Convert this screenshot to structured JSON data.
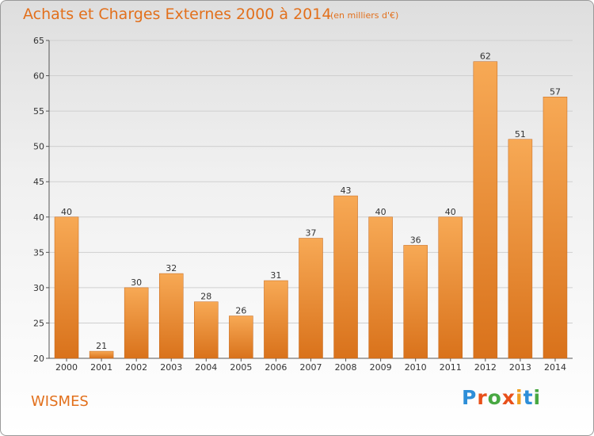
{
  "header": {
    "title": "Achats et Charges Externes 2000 à 2014",
    "subtitle": "(en milliers d'€)"
  },
  "footer": {
    "commune": "WISMES",
    "logo_text": "Proxiti"
  },
  "colors": {
    "accent": "#e2701c",
    "bar_top": "#f7a955",
    "bar_bottom": "#d9721b"
  },
  "chart_data": {
    "type": "bar",
    "title": "Achats et Charges Externes 2000 à 2014",
    "subtitle": "(en milliers d'€)",
    "categories": [
      "2000",
      "2001",
      "2002",
      "2003",
      "2004",
      "2005",
      "2006",
      "2007",
      "2008",
      "2009",
      "2010",
      "2011",
      "2012",
      "2013",
      "2014"
    ],
    "values": [
      40,
      21,
      30,
      32,
      28,
      26,
      31,
      37,
      43,
      40,
      36,
      40,
      62,
      51,
      57
    ],
    "ylim": [
      20,
      65
    ],
    "yticks": [
      20,
      25,
      30,
      35,
      40,
      45,
      50,
      55,
      60,
      65
    ],
    "grid": true
  }
}
